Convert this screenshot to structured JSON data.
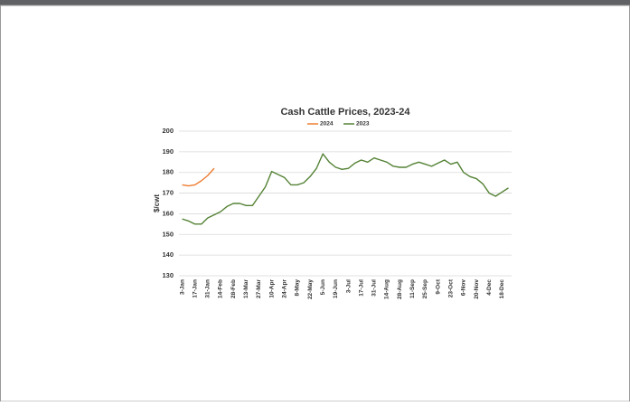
{
  "chart_data": {
    "type": "line",
    "title": "Cash Cattle Prices, 2023-24",
    "y_label": "$/cwt",
    "categories": [
      "3-Jan",
      null,
      "17-Jan",
      null,
      "31-Jan",
      null,
      "14-Feb",
      null,
      "28-Feb",
      null,
      "13-Mar",
      null,
      "27-Mar",
      null,
      "10-Apr",
      null,
      "24-Apr",
      null,
      "8-May",
      null,
      "22-May",
      null,
      "5-Jun",
      null,
      "19-Jun",
      null,
      "3-Jul",
      null,
      "17-Jul",
      null,
      "31-Jul",
      null,
      "14-Aug",
      null,
      "28-Aug",
      null,
      "11-Sep",
      null,
      "25-Sep",
      null,
      "9-Oct",
      null,
      "23-Oct",
      null,
      "6-Nov",
      null,
      "20-Nov",
      null,
      "4-Dec",
      null,
      "18-Dec",
      null
    ],
    "series": [
      {
        "name": "2024",
        "color": "#ed7d31",
        "values": [
          174,
          173.5,
          174,
          176,
          178.5,
          182,
          null,
          null,
          null,
          null,
          null,
          null,
          null,
          null,
          null,
          null,
          null,
          null,
          null,
          null,
          null,
          null,
          null,
          null,
          null,
          null,
          null,
          null,
          null,
          null,
          null,
          null,
          null,
          null,
          null,
          null,
          null,
          null,
          null,
          null,
          null,
          null,
          null,
          null,
          null,
          null,
          null,
          null,
          null,
          null,
          null,
          null
        ]
      },
      {
        "name": "2023",
        "color": "#548235",
        "values": [
          157.5,
          156.5,
          155,
          155,
          158,
          159.5,
          161,
          163.5,
          165,
          165,
          164,
          164,
          168.5,
          173,
          180.5,
          179,
          177.5,
          174,
          174,
          175,
          178,
          182,
          189,
          185,
          182.5,
          181.5,
          182,
          184.5,
          186,
          185,
          187,
          186,
          185,
          183,
          182.5,
          182.5,
          184,
          185,
          184,
          183,
          184.5,
          186,
          184,
          185,
          180,
          178,
          177,
          174.5,
          170,
          168.5,
          170.5,
          172.5
        ]
      }
    ],
    "ylim": [
      130,
      200
    ],
    "yticks": [
      130,
      140,
      150,
      160,
      170,
      180,
      190,
      200
    ],
    "grid": true,
    "legend": "top"
  }
}
